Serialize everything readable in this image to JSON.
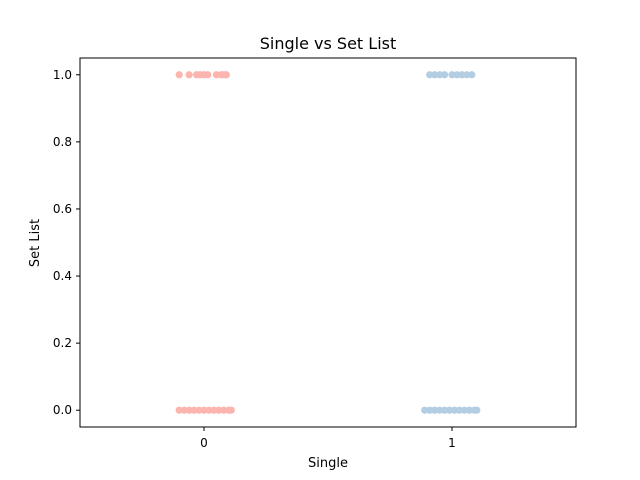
{
  "chart_data": {
    "type": "scatter",
    "title": "Single vs Set List",
    "xlabel": "Single",
    "ylabel": "Set List",
    "categories": [
      "0",
      "1"
    ],
    "yticks": [
      "0.0",
      "0.2",
      "0.4",
      "0.6",
      "0.8",
      "1.0"
    ],
    "ylim": [
      -0.05,
      1.05
    ],
    "grid": false,
    "series": [
      {
        "category": "0",
        "color": "#fbb4ae",
        "points": [
          {
            "x": -0.1,
            "y": 1
          },
          {
            "x": -0.06,
            "y": 1
          },
          {
            "x": -0.03,
            "y": 1
          },
          {
            "x": -0.015,
            "y": 1
          },
          {
            "x": 0.0,
            "y": 1
          },
          {
            "x": 0.015,
            "y": 1
          },
          {
            "x": 0.05,
            "y": 1
          },
          {
            "x": 0.07,
            "y": 1
          },
          {
            "x": 0.08,
            "y": 1
          },
          {
            "x": 0.09,
            "y": 1
          },
          {
            "x": -0.1,
            "y": 0
          },
          {
            "x": -0.08,
            "y": 0
          },
          {
            "x": -0.06,
            "y": 0
          },
          {
            "x": -0.04,
            "y": 0
          },
          {
            "x": -0.02,
            "y": 0
          },
          {
            "x": 0.0,
            "y": 0
          },
          {
            "x": 0.02,
            "y": 0
          },
          {
            "x": 0.04,
            "y": 0
          },
          {
            "x": 0.06,
            "y": 0
          },
          {
            "x": 0.08,
            "y": 0
          },
          {
            "x": 0.1,
            "y": 0
          },
          {
            "x": 0.11,
            "y": 0
          }
        ]
      },
      {
        "category": "1",
        "color": "#b3cde3",
        "points": [
          {
            "x": 0.91,
            "y": 1
          },
          {
            "x": 0.93,
            "y": 1
          },
          {
            "x": 0.95,
            "y": 1
          },
          {
            "x": 0.97,
            "y": 1
          },
          {
            "x": 1.0,
            "y": 1
          },
          {
            "x": 1.02,
            "y": 1
          },
          {
            "x": 1.04,
            "y": 1
          },
          {
            "x": 1.06,
            "y": 1
          },
          {
            "x": 1.08,
            "y": 1
          },
          {
            "x": 0.89,
            "y": 0
          },
          {
            "x": 0.91,
            "y": 0
          },
          {
            "x": 0.93,
            "y": 0
          },
          {
            "x": 0.95,
            "y": 0
          },
          {
            "x": 0.97,
            "y": 0
          },
          {
            "x": 0.99,
            "y": 0
          },
          {
            "x": 1.01,
            "y": 0
          },
          {
            "x": 1.03,
            "y": 0
          },
          {
            "x": 1.05,
            "y": 0
          },
          {
            "x": 1.07,
            "y": 0
          },
          {
            "x": 1.09,
            "y": 0
          },
          {
            "x": 1.1,
            "y": 0
          }
        ]
      }
    ]
  }
}
